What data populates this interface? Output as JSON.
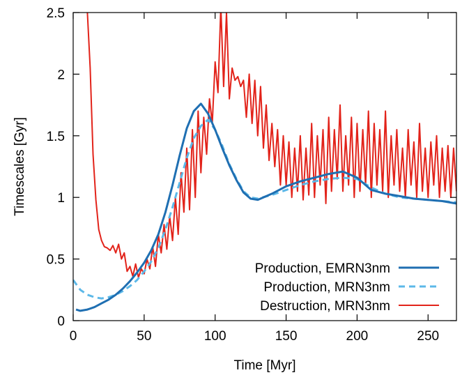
{
  "chart_data": {
    "type": "line",
    "xlabel": "Time [Myr]",
    "ylabel": "Timescales [Gyr]",
    "xlim": [
      0,
      270
    ],
    "ylim": [
      0,
      2.5
    ],
    "xticks": [
      0,
      50,
      100,
      150,
      200,
      250
    ],
    "yticks": [
      0,
      0.5,
      1,
      1.5,
      2,
      2.5
    ],
    "xtick_labels": [
      "0",
      "50",
      "100",
      "150",
      "200",
      "250"
    ],
    "ytick_labels": [
      "0",
      "0.5",
      "1",
      "1.5",
      "2",
      "2.5"
    ],
    "grid": false,
    "legend_position": "bottom-right",
    "series": [
      {
        "name": "Production, EMRN3nm",
        "color": "#1f6fb2",
        "style": "solid",
        "x": [
          2,
          5,
          10,
          15,
          20,
          25,
          30,
          35,
          40,
          45,
          50,
          55,
          60,
          65,
          70,
          75,
          80,
          85,
          90,
          95,
          100,
          105,
          110,
          115,
          120,
          125,
          130,
          140,
          150,
          160,
          170,
          180,
          190,
          200,
          210,
          220,
          230,
          240,
          250,
          260,
          270
        ],
        "y": [
          0.09,
          0.08,
          0.09,
          0.11,
          0.14,
          0.17,
          0.21,
          0.26,
          0.32,
          0.39,
          0.47,
          0.57,
          0.7,
          0.88,
          1.1,
          1.34,
          1.56,
          1.7,
          1.76,
          1.68,
          1.55,
          1.4,
          1.26,
          1.14,
          1.04,
          0.99,
          0.98,
          1.03,
          1.09,
          1.13,
          1.16,
          1.19,
          1.21,
          1.16,
          1.06,
          1.03,
          1.01,
          0.99,
          0.98,
          0.97,
          0.95
        ]
      },
      {
        "name": "Production, MRN3nm",
        "color": "#5cb8e8",
        "style": "dashed",
        "x": [
          0,
          5,
          10,
          15,
          20,
          25,
          30,
          35,
          40,
          45,
          50,
          55,
          60,
          65,
          70,
          75,
          80,
          85,
          90,
          95,
          100,
          105,
          110,
          115,
          120,
          125,
          130,
          140,
          150,
          160,
          170,
          180,
          190,
          200,
          210,
          220,
          230,
          240,
          250,
          260,
          270
        ],
        "y": [
          0.33,
          0.25,
          0.21,
          0.19,
          0.18,
          0.19,
          0.21,
          0.24,
          0.28,
          0.33,
          0.4,
          0.48,
          0.59,
          0.74,
          0.92,
          1.12,
          1.32,
          1.48,
          1.58,
          1.63,
          1.55,
          1.42,
          1.27,
          1.15,
          1.05,
          1.0,
          0.99,
          1.02,
          1.06,
          1.1,
          1.13,
          1.15,
          1.16,
          1.15,
          1.08,
          1.03,
          1.0,
          0.99,
          0.98,
          0.97,
          0.96
        ]
      },
      {
        "name": "Destruction, MRN3nm",
        "color": "#e2231a",
        "style": "solid",
        "x": [
          10,
          12,
          14,
          16,
          18,
          20,
          22,
          24,
          26,
          28,
          30,
          32,
          34,
          36,
          38,
          40,
          42,
          44,
          46,
          48,
          50,
          52,
          54,
          56,
          58,
          60,
          62,
          64,
          66,
          68,
          70,
          72,
          74,
          76,
          78,
          80,
          82,
          84,
          86,
          88,
          90,
          92,
          94,
          96,
          98,
          100,
          102,
          104,
          106,
          108,
          110,
          112,
          114,
          116,
          118,
          120,
          122,
          124,
          126,
          128,
          130,
          132,
          134,
          136,
          138,
          140,
          142,
          144,
          146,
          148,
          150,
          152,
          154,
          156,
          158,
          160,
          162,
          164,
          166,
          168,
          170,
          172,
          174,
          176,
          178,
          180,
          182,
          184,
          186,
          188,
          190,
          192,
          194,
          196,
          198,
          200,
          202,
          204,
          206,
          208,
          210,
          212,
          214,
          216,
          218,
          220,
          222,
          224,
          226,
          228,
          230,
          232,
          234,
          236,
          238,
          240,
          242,
          244,
          246,
          248,
          250,
          252,
          254,
          256,
          258,
          260,
          262,
          264,
          266,
          268,
          270
        ],
        "y": [
          2.5,
          2.05,
          1.35,
          0.98,
          0.74,
          0.65,
          0.6,
          0.59,
          0.57,
          0.61,
          0.55,
          0.62,
          0.5,
          0.55,
          0.4,
          0.44,
          0.36,
          0.46,
          0.35,
          0.42,
          0.38,
          0.5,
          0.42,
          0.6,
          0.44,
          0.7,
          0.55,
          0.78,
          0.58,
          0.85,
          0.65,
          1.0,
          0.7,
          1.2,
          0.88,
          1.4,
          0.9,
          1.55,
          1.0,
          1.7,
          1.2,
          1.65,
          1.35,
          1.8,
          1.6,
          2.1,
          1.85,
          2.55,
          1.9,
          2.5,
          1.8,
          2.05,
          1.95,
          1.98,
          1.9,
          1.95,
          1.65,
          2.0,
          1.6,
          1.95,
          1.5,
          1.9,
          1.4,
          1.75,
          1.3,
          1.6,
          1.25,
          1.55,
          1.1,
          1.5,
          1.1,
          1.45,
          1.0,
          1.4,
          1.05,
          1.5,
          0.98,
          1.4,
          1.02,
          1.6,
          1.0,
          1.5,
          1.1,
          1.55,
          0.95,
          1.65,
          1.05,
          1.55,
          1.15,
          1.75,
          1.05,
          1.5,
          1.1,
          1.65,
          1.0,
          1.6,
          1.05,
          1.55,
          1.1,
          1.7,
          1.0,
          1.6,
          1.1,
          1.55,
          1.05,
          1.7,
          1.0,
          1.5,
          1.1,
          1.55,
          1.05,
          1.4,
          1.0,
          1.55,
          1.1,
          1.45,
          1.0,
          1.6,
          1.05,
          1.4,
          1.0,
          1.45,
          1.1,
          1.5,
          1.0,
          1.4,
          1.05,
          1.42,
          1.0,
          1.4,
          1.05
        ]
      }
    ]
  }
}
